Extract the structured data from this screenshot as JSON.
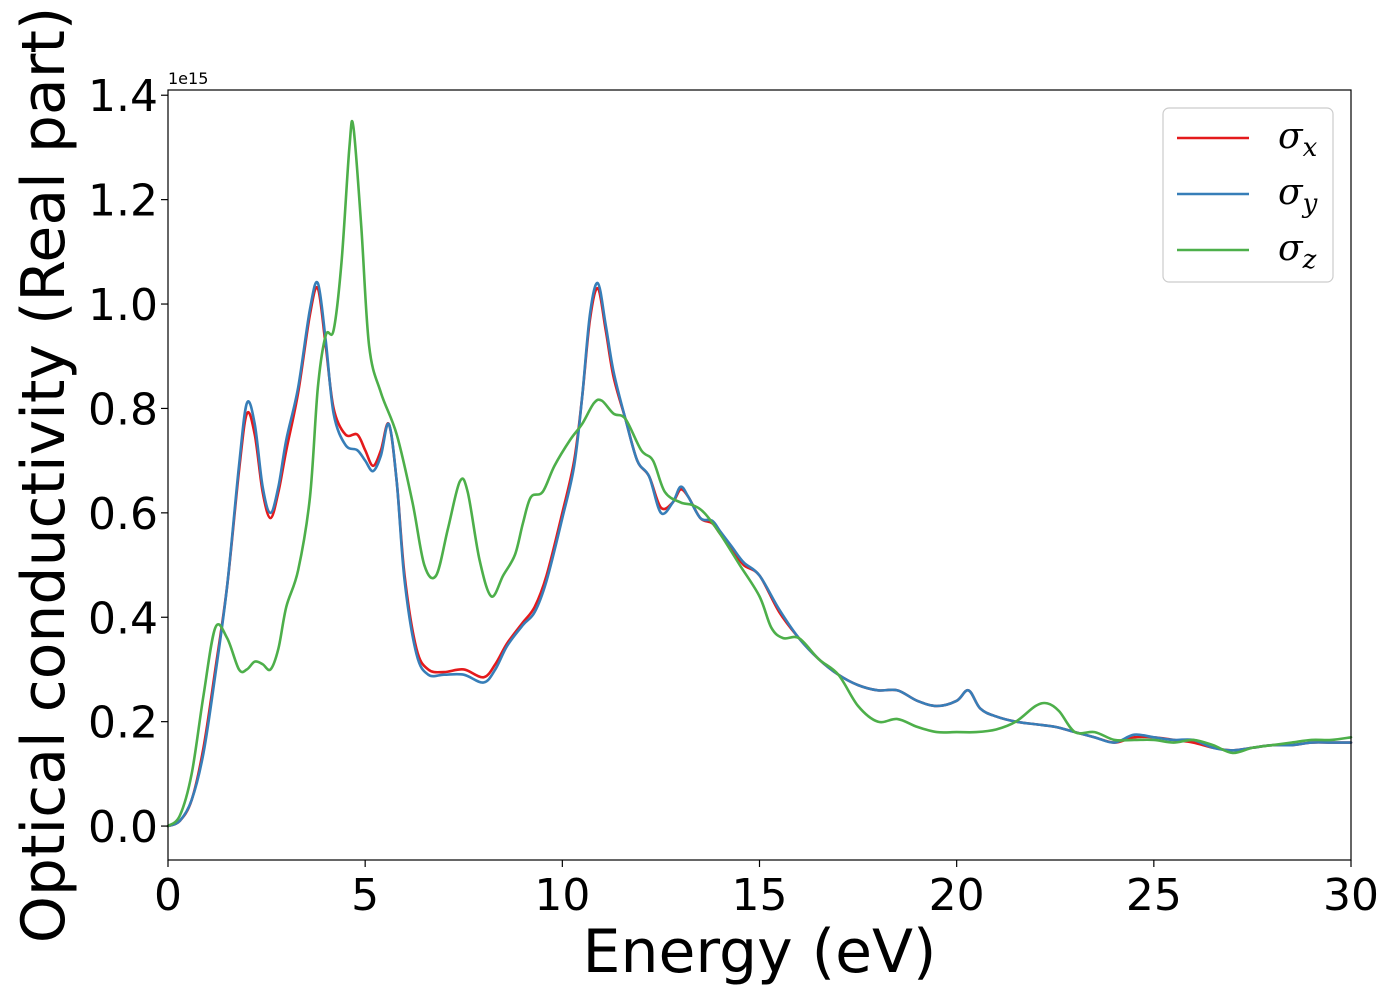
{
  "chart_data": {
    "type": "line",
    "xlabel": "Energy (eV)",
    "ylabel": "Optical conductivity (Real part)",
    "offset_text": "1e15",
    "xlim": [
      0,
      30
    ],
    "ylim": [
      -0.065,
      1.41
    ],
    "xticks": [
      0,
      5,
      10,
      15,
      20,
      25,
      30
    ],
    "xtick_labels": [
      "0",
      "5",
      "10",
      "15",
      "20",
      "25",
      "30"
    ],
    "yticks": [
      0.0,
      0.2,
      0.4,
      0.6,
      0.8,
      1.0,
      1.2,
      1.4
    ],
    "ytick_labels": [
      "0.0",
      "0.2",
      "0.4",
      "0.6",
      "0.8",
      "1.0",
      "1.2",
      "1.4"
    ],
    "grid": false,
    "legend_position": "top-right",
    "series": [
      {
        "name": "σ",
        "subscript": "x",
        "color": "#e41a1c",
        "x": [
          0,
          0.3,
          0.6,
          0.9,
          1.2,
          1.5,
          1.8,
          2.0,
          2.2,
          2.4,
          2.6,
          2.8,
          3.0,
          3.3,
          3.6,
          3.8,
          4.0,
          4.2,
          4.5,
          4.8,
          5.0,
          5.2,
          5.4,
          5.6,
          5.8,
          6.0,
          6.3,
          6.6,
          7.0,
          7.5,
          8.0,
          8.3,
          8.6,
          9.0,
          9.3,
          9.6,
          10.0,
          10.3,
          10.5,
          10.7,
          10.9,
          11.1,
          11.3,
          11.6,
          11.9,
          12.2,
          12.5,
          12.8,
          13.0,
          13.2,
          13.5,
          13.8,
          14.0,
          14.3,
          14.6,
          15.0,
          15.5,
          16.0,
          16.5,
          17.0,
          17.5,
          18.0,
          18.5,
          19.0,
          19.5,
          20.0,
          20.3,
          20.6,
          21.0,
          21.5,
          22.0,
          22.5,
          23.0,
          23.5,
          24.0,
          24.5,
          25.0,
          25.5,
          26.0,
          26.5,
          27.0,
          27.5,
          28.0,
          28.5,
          29.0,
          29.5,
          30.0
        ],
        "y": [
          0.0,
          0.01,
          0.05,
          0.15,
          0.3,
          0.46,
          0.68,
          0.79,
          0.75,
          0.64,
          0.59,
          0.64,
          0.72,
          0.83,
          0.98,
          1.03,
          0.92,
          0.8,
          0.75,
          0.75,
          0.72,
          0.69,
          0.72,
          0.77,
          0.66,
          0.48,
          0.34,
          0.3,
          0.295,
          0.3,
          0.285,
          0.31,
          0.35,
          0.39,
          0.42,
          0.48,
          0.6,
          0.7,
          0.82,
          0.97,
          1.03,
          0.95,
          0.86,
          0.78,
          0.7,
          0.67,
          0.61,
          0.62,
          0.645,
          0.63,
          0.59,
          0.58,
          0.56,
          0.53,
          0.5,
          0.48,
          0.41,
          0.36,
          0.32,
          0.29,
          0.27,
          0.26,
          0.26,
          0.24,
          0.23,
          0.24,
          0.26,
          0.225,
          0.21,
          0.2,
          0.195,
          0.19,
          0.18,
          0.17,
          0.16,
          0.17,
          0.17,
          0.165,
          0.16,
          0.15,
          0.145,
          0.15,
          0.155,
          0.155,
          0.16,
          0.16,
          0.16
        ]
      },
      {
        "name": "σ",
        "subscript": "y",
        "color": "#377eb8",
        "x": [
          0,
          0.3,
          0.6,
          0.9,
          1.2,
          1.5,
          1.8,
          2.0,
          2.2,
          2.4,
          2.6,
          2.8,
          3.0,
          3.3,
          3.6,
          3.8,
          4.0,
          4.2,
          4.5,
          4.8,
          5.0,
          5.2,
          5.4,
          5.6,
          5.8,
          6.0,
          6.3,
          6.6,
          7.0,
          7.5,
          8.0,
          8.3,
          8.6,
          9.0,
          9.3,
          9.6,
          10.0,
          10.3,
          10.5,
          10.7,
          10.9,
          11.1,
          11.3,
          11.6,
          11.9,
          12.2,
          12.5,
          12.8,
          13.0,
          13.2,
          13.5,
          13.8,
          14.0,
          14.3,
          14.6,
          15.0,
          15.5,
          16.0,
          16.5,
          17.0,
          17.5,
          18.0,
          18.5,
          19.0,
          19.5,
          20.0,
          20.3,
          20.6,
          21.0,
          21.5,
          22.0,
          22.5,
          23.0,
          23.5,
          24.0,
          24.5,
          25.0,
          25.5,
          26.0,
          26.5,
          27.0,
          27.5,
          28.0,
          28.5,
          29.0,
          29.5,
          30.0
        ],
        "y": [
          0.0,
          0.01,
          0.05,
          0.14,
          0.29,
          0.46,
          0.69,
          0.81,
          0.77,
          0.65,
          0.6,
          0.65,
          0.74,
          0.84,
          0.99,
          1.04,
          0.93,
          0.79,
          0.73,
          0.72,
          0.7,
          0.68,
          0.71,
          0.77,
          0.66,
          0.47,
          0.33,
          0.29,
          0.29,
          0.29,
          0.275,
          0.3,
          0.345,
          0.385,
          0.41,
          0.47,
          0.59,
          0.69,
          0.82,
          0.98,
          1.04,
          0.96,
          0.87,
          0.78,
          0.7,
          0.67,
          0.6,
          0.62,
          0.65,
          0.63,
          0.59,
          0.585,
          0.565,
          0.535,
          0.505,
          0.48,
          0.415,
          0.36,
          0.32,
          0.29,
          0.27,
          0.26,
          0.26,
          0.24,
          0.23,
          0.24,
          0.26,
          0.225,
          0.21,
          0.2,
          0.195,
          0.19,
          0.18,
          0.17,
          0.16,
          0.175,
          0.17,
          0.165,
          0.165,
          0.15,
          0.145,
          0.15,
          0.155,
          0.155,
          0.16,
          0.16,
          0.16
        ]
      },
      {
        "name": "σ",
        "subscript": "z",
        "color": "#4daf4a",
        "x": [
          0,
          0.3,
          0.6,
          0.9,
          1.2,
          1.5,
          1.8,
          2.0,
          2.2,
          2.4,
          2.6,
          2.8,
          3.0,
          3.3,
          3.6,
          3.8,
          4.0,
          4.2,
          4.4,
          4.6,
          4.7,
          4.9,
          5.1,
          5.4,
          5.8,
          6.2,
          6.5,
          6.8,
          7.1,
          7.4,
          7.6,
          7.9,
          8.2,
          8.5,
          8.8,
          9.0,
          9.2,
          9.5,
          9.8,
          10.2,
          10.5,
          10.8,
          11.0,
          11.3,
          11.6,
          12.0,
          12.3,
          12.6,
          13.0,
          13.3,
          13.6,
          14.0,
          14.5,
          15.0,
          15.3,
          15.6,
          16.0,
          16.5,
          17.0,
          17.5,
          18.0,
          18.5,
          19.0,
          19.5,
          20.0,
          20.5,
          21.0,
          21.5,
          22.0,
          22.3,
          22.6,
          23.0,
          23.5,
          24.0,
          24.5,
          25.0,
          25.5,
          26.0,
          26.5,
          27.0,
          27.5,
          28.0,
          28.5,
          29.0,
          29.5,
          30.0
        ],
        "y": [
          0.0,
          0.02,
          0.1,
          0.25,
          0.38,
          0.36,
          0.3,
          0.3,
          0.315,
          0.31,
          0.3,
          0.34,
          0.42,
          0.49,
          0.63,
          0.84,
          0.94,
          0.95,
          1.08,
          1.3,
          1.34,
          1.15,
          0.92,
          0.83,
          0.75,
          0.62,
          0.5,
          0.48,
          0.57,
          0.66,
          0.64,
          0.51,
          0.44,
          0.48,
          0.52,
          0.58,
          0.63,
          0.64,
          0.69,
          0.74,
          0.77,
          0.81,
          0.815,
          0.79,
          0.78,
          0.72,
          0.7,
          0.64,
          0.62,
          0.615,
          0.6,
          0.56,
          0.5,
          0.44,
          0.38,
          0.36,
          0.36,
          0.32,
          0.29,
          0.23,
          0.2,
          0.205,
          0.19,
          0.18,
          0.18,
          0.18,
          0.185,
          0.2,
          0.23,
          0.235,
          0.22,
          0.18,
          0.18,
          0.165,
          0.165,
          0.165,
          0.16,
          0.165,
          0.155,
          0.14,
          0.15,
          0.155,
          0.16,
          0.165,
          0.165,
          0.17
        ]
      }
    ]
  }
}
